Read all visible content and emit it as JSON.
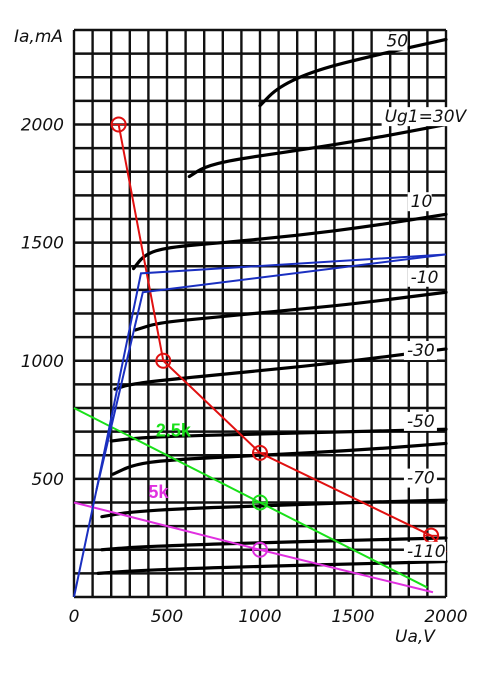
{
  "chart_data": {
    "type": "line",
    "xlabel": "Ua,V",
    "ylabel": "Ia,mA",
    "xlim": [
      0,
      2000
    ],
    "ylim": [
      0,
      2400
    ],
    "x_ticks": [
      0,
      500,
      1000,
      1500,
      2000
    ],
    "y_ticks": [
      500,
      1000,
      1500,
      2000
    ],
    "grid": true,
    "series": [
      {
        "name": "50",
        "label_at": [
          1680,
          2330
        ],
        "points": [
          [
            1000,
            2080
          ],
          [
            1100,
            2160
          ],
          [
            1300,
            2230
          ],
          [
            1600,
            2290
          ],
          [
            2000,
            2360
          ]
        ]
      },
      {
        "name": "Ug1=30V",
        "label_at": [
          1670,
          2010
        ],
        "points": [
          [
            620,
            1780
          ],
          [
            700,
            1820
          ],
          [
            850,
            1850
          ],
          [
            1200,
            1890
          ],
          [
            1600,
            1940
          ],
          [
            2000,
            2000
          ]
        ]
      },
      {
        "name": "10",
        "label_at": [
          1810,
          1650
        ],
        "points": [
          [
            320,
            1390
          ],
          [
            380,
            1450
          ],
          [
            500,
            1480
          ],
          [
            800,
            1500
          ],
          [
            1200,
            1530
          ],
          [
            1600,
            1570
          ],
          [
            2000,
            1620
          ]
        ]
      },
      {
        "name": "-10",
        "label_at": [
          1810,
          1330
        ],
        "points": [
          [
            330,
            1130
          ],
          [
            450,
            1160
          ],
          [
            700,
            1180
          ],
          [
            1100,
            1210
          ],
          [
            1500,
            1240
          ],
          [
            2000,
            1290
          ]
        ]
      },
      {
        "name": "-30",
        "label_at": [
          1790,
          1020
        ],
        "points": [
          [
            220,
            880
          ],
          [
            300,
            900
          ],
          [
            500,
            920
          ],
          [
            900,
            950
          ],
          [
            1400,
            990
          ],
          [
            2000,
            1050
          ]
        ]
      },
      {
        "name": "-50",
        "label_at": [
          1790,
          720
        ],
        "points": [
          [
            200,
            660
          ],
          [
            300,
            670
          ],
          [
            500,
            680
          ],
          [
            1000,
            690
          ],
          [
            1500,
            700
          ],
          [
            2000,
            710
          ]
        ]
      },
      {
        "name": "-70",
        "label_at": [
          1790,
          480
        ],
        "points": [
          [
            210,
            520
          ],
          [
            320,
            560
          ],
          [
            500,
            580
          ],
          [
            1000,
            600
          ],
          [
            1500,
            620
          ],
          [
            2000,
            650
          ]
        ]
      },
      {
        "name": "-110",
        "label_at": [
          1790,
          170
        ],
        "points": [
          [
            150,
            340
          ],
          [
            300,
            360
          ],
          [
            600,
            375
          ],
          [
            1000,
            385
          ],
          [
            1500,
            400
          ],
          [
            2000,
            410
          ]
        ]
      },
      {
        "name": "",
        "points": [
          [
            150,
            200
          ],
          [
            300,
            210
          ],
          [
            600,
            220
          ],
          [
            1000,
            230
          ],
          [
            1500,
            240
          ],
          [
            2000,
            250
          ]
        ]
      },
      {
        "name": "",
        "points": [
          [
            130,
            100
          ],
          [
            300,
            110
          ],
          [
            600,
            120
          ],
          [
            1000,
            130
          ],
          [
            1500,
            140
          ],
          [
            2000,
            150
          ]
        ]
      }
    ],
    "load_lines": [
      {
        "name": "",
        "color": "#e01010",
        "points": [
          [
            240,
            2000
          ],
          [
            480,
            1000
          ],
          [
            1000,
            610
          ],
          [
            1920,
            260
          ],
          [
            2000,
            190
          ]
        ],
        "markers": [
          [
            240,
            2000
          ],
          [
            480,
            1000
          ],
          [
            1000,
            610
          ],
          [
            1920,
            260
          ]
        ]
      },
      {
        "name": "2.5k",
        "color": "#19e019",
        "label_at": [
          440,
          680
        ],
        "points": [
          [
            0,
            800
          ],
          [
            1000,
            400
          ],
          [
            1900,
            40
          ]
        ],
        "markers": [
          [
            1000,
            400
          ]
        ]
      },
      {
        "name": "5k",
        "color": "#e030e0",
        "label_at": [
          400,
          420
        ],
        "points": [
          [
            0,
            400
          ],
          [
            1000,
            200
          ],
          [
            1930,
            20
          ]
        ],
        "markers": [
          [
            1000,
            200
          ]
        ]
      },
      {
        "name": "",
        "color": "#1a2fc0",
        "points": [
          [
            0,
            0
          ],
          [
            120,
            450
          ],
          [
            360,
            1370
          ],
          [
            2000,
            1450
          ]
        ],
        "markers": []
      },
      {
        "name": "",
        "color": "#1a2fc0",
        "points": [
          [
            120,
            450
          ],
          [
            370,
            1290
          ],
          [
            2000,
            1450
          ]
        ],
        "markers": []
      }
    ]
  }
}
